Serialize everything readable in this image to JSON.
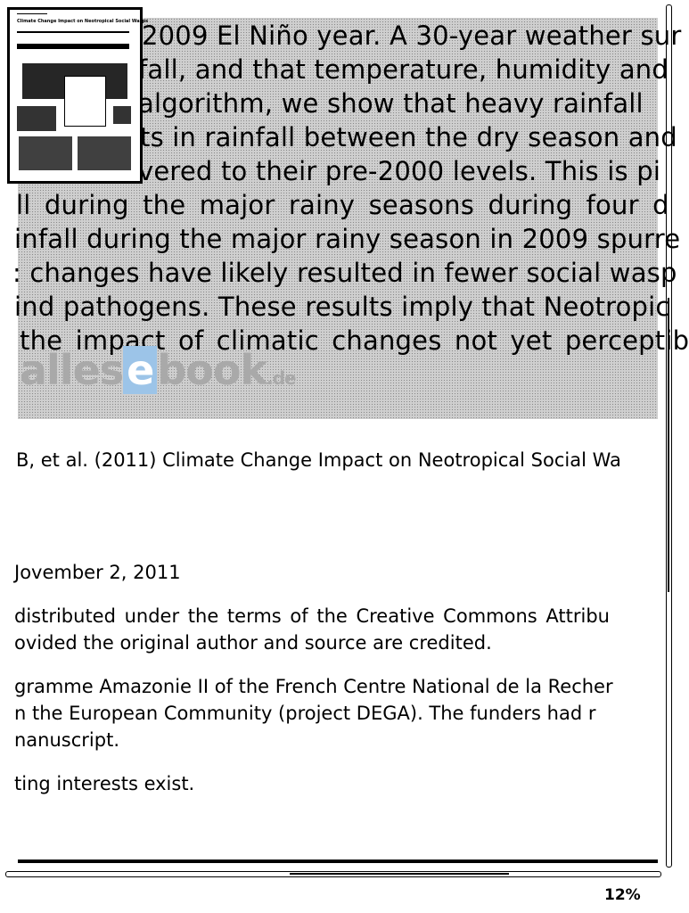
{
  "abstract_lines": [
    "2009 El Niño year. A 30-year weather sur",
    "fall, and that temperature, humidity and",
    " algorithm, we show that heavy rainfall",
    "ts in rainfall between the dry season and",
    "vered to their pre-2000 levels. This is pi",
    "ll during the major rainy seasons during four d",
    "infall during the major rainy season in 2009 spurre",
    ": changes have likely resulted in fewer social wasp",
    "ind pathogens. These results imply that Neotropic",
    "the impact of climatic changes not yet perceptib"
  ],
  "watermark": {
    "text_a": "alles",
    "text_e": "e",
    "text_b": "book",
    "text_c": ".de"
  },
  "thumbnail": {
    "title": "Climate Change Impact on Neotropical Social Wasps"
  },
  "body_lines": [
    "B, et al. (2011) Climate Change Impact on Neotropical Social Wa",
    "Jovember 2, 2011",
    "distributed under the terms of the Creative Commons Attribu",
    "ovided the original author and source are credited.",
    "gramme Amazonie II of the French Centre National de la Recher",
    "n the European Community (project DEGA). The funders had r",
    "nanuscript.",
    "ting interests exist."
  ],
  "progress": {
    "label": "12%",
    "value": 12
  },
  "colors": {
    "background": "#ffffff",
    "highlight": "#cfcfcf",
    "watermark_accent": "#9cc4e8"
  }
}
